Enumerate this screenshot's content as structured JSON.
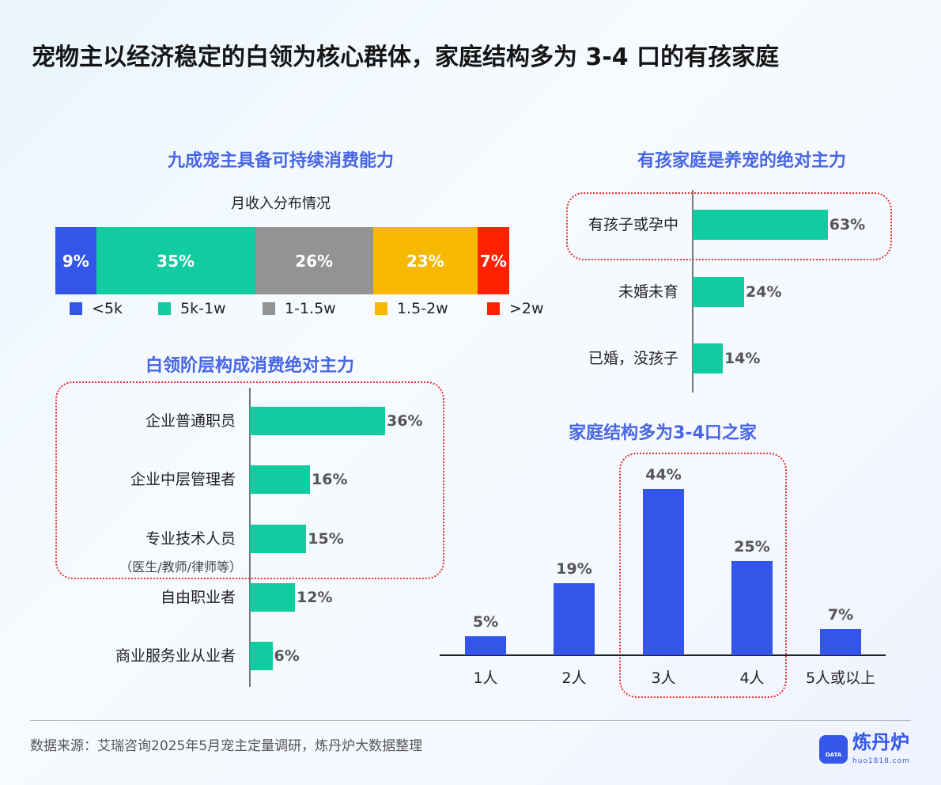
{
  "title": "宠物主以经济稳定的白领为核心群体，家庭结构多为 3-4 口的有孩家庭",
  "footer": {
    "source": "数据来源：艾瑞咨询2025年5月宠主定量调研，炼丹炉大数据整理",
    "logo_text": "炼丹炉",
    "logo_url_text": "huo1818.com",
    "logo_badge": "DATA"
  },
  "chart_data": [
    {
      "type": "bar",
      "orientation": "stacked-horizontal",
      "title": "九成宠主具备可持续消费能力",
      "subtitle": "月收入分布情况",
      "unit": "%",
      "series": [
        {
          "name": "<5k",
          "value": 9,
          "label": "9%",
          "color": "#3355e8"
        },
        {
          "name": "5k-1w",
          "value": 35,
          "label": "35%",
          "color": "#10cca0"
        },
        {
          "name": "1-1.5w",
          "value": 26,
          "label": "26%",
          "color": "#939393"
        },
        {
          "name": "1.5-2w",
          "value": 23,
          "label": "23%",
          "color": "#f7b900"
        },
        {
          "name": ">2w",
          "value": 7,
          "label": "7%",
          "color": "#ff2200"
        }
      ],
      "legend": "bottom"
    },
    {
      "type": "bar",
      "orientation": "horizontal",
      "title": "白领阶层构成消费绝对主力",
      "color": "#10cca0",
      "categories": [
        "企业普通职员",
        "企业中层管理者",
        "专业技术人员",
        "自由职业者",
        "商业服务业从业者"
      ],
      "category_notes": [
        "",
        "",
        "（医生/教师/律师等）",
        "",
        ""
      ],
      "values": [
        36,
        16,
        15,
        12,
        6
      ],
      "labels": [
        "36%",
        "16%",
        "15%",
        "12%",
        "6%"
      ],
      "highlight": [
        0,
        1,
        2
      ]
    },
    {
      "type": "bar",
      "orientation": "horizontal",
      "title": "有孩家庭是养宠的绝对主力",
      "color": "#10cca0",
      "categories": [
        "有孩子或孕中",
        "未婚未育",
        "已婚，没孩子"
      ],
      "values": [
        63,
        24,
        14
      ],
      "labels": [
        "63%",
        "24%",
        "14%"
      ],
      "highlight": [
        0
      ]
    },
    {
      "type": "bar",
      "orientation": "vertical",
      "title": "家庭结构多为3-4口之家",
      "color": "#3355e8",
      "categories": [
        "1人",
        "2人",
        "3人",
        "4人",
        "5人或以上"
      ],
      "values": [
        5,
        19,
        44,
        25,
        7
      ],
      "labels": [
        "5%",
        "19%",
        "44%",
        "25%",
        "7%"
      ],
      "highlight": [
        2,
        3
      ]
    }
  ]
}
